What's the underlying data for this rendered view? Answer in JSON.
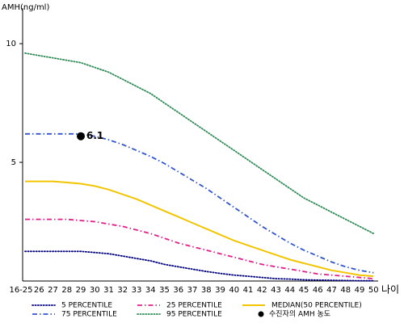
{
  "chart_data": {
    "type": "line",
    "y_label": "AMH(ng/ml)",
    "x_label": "나이",
    "categories": [
      "16-25",
      "26",
      "27",
      "28",
      "29",
      "30",
      "31",
      "32",
      "33",
      "34",
      "35",
      "36",
      "37",
      "38",
      "39",
      "40",
      "41",
      "42",
      "43",
      "44",
      "45",
      "46",
      "47",
      "48",
      "49",
      "50"
    ],
    "ylim": [
      0,
      11.5
    ],
    "yticks": [
      5,
      10
    ],
    "series": [
      {
        "name": "5 PERCENTILE",
        "color": "#000080",
        "style": "dotted",
        "values": [
          1.25,
          1.25,
          1.25,
          1.25,
          1.25,
          1.2,
          1.15,
          1.05,
          0.95,
          0.85,
          0.7,
          0.6,
          0.5,
          0.4,
          0.32,
          0.25,
          0.2,
          0.15,
          0.1,
          0.08,
          0.05,
          0.04,
          0.03,
          0.02,
          0.01,
          0.01
        ]
      },
      {
        "name": "25 PERCENTILE",
        "color": "#e0218a",
        "style": "dashdot",
        "values": [
          2.6,
          2.6,
          2.6,
          2.6,
          2.55,
          2.5,
          2.4,
          2.3,
          2.15,
          2.0,
          1.8,
          1.6,
          1.45,
          1.3,
          1.15,
          1.0,
          0.85,
          0.7,
          0.6,
          0.5,
          0.4,
          0.3,
          0.25,
          0.2,
          0.15,
          0.1
        ]
      },
      {
        "name": "MEDIAN(50 PERCENTILE)",
        "color": "#f2c500",
        "style": "solid",
        "values": [
          4.2,
          4.2,
          4.2,
          4.15,
          4.1,
          4.0,
          3.85,
          3.65,
          3.45,
          3.2,
          2.95,
          2.7,
          2.45,
          2.2,
          1.95,
          1.7,
          1.5,
          1.3,
          1.1,
          0.9,
          0.75,
          0.6,
          0.45,
          0.35,
          0.25,
          0.2
        ]
      },
      {
        "name": "75 PERCENTILE",
        "color": "#3355cc",
        "style": "dashdot",
        "values": [
          6.2,
          6.2,
          6.2,
          6.2,
          6.2,
          6.1,
          5.95,
          5.75,
          5.5,
          5.25,
          4.95,
          4.6,
          4.25,
          3.9,
          3.5,
          3.1,
          2.7,
          2.3,
          1.95,
          1.6,
          1.3,
          1.05,
          0.8,
          0.6,
          0.45,
          0.35
        ]
      },
      {
        "name": "95 PERCENTILE",
        "color": "#2e8b57",
        "style": "dotted",
        "values": [
          9.6,
          9.5,
          9.4,
          9.3,
          9.2,
          9.0,
          8.8,
          8.5,
          8.2,
          7.9,
          7.5,
          7.1,
          6.7,
          6.3,
          5.9,
          5.5,
          5.1,
          4.7,
          4.3,
          3.9,
          3.5,
          3.2,
          2.9,
          2.6,
          2.3,
          2.0
        ]
      }
    ],
    "marker": {
      "name": "수진자의 AMH 농도",
      "category_index": 4,
      "value": 6.1,
      "color": "#000000"
    }
  }
}
